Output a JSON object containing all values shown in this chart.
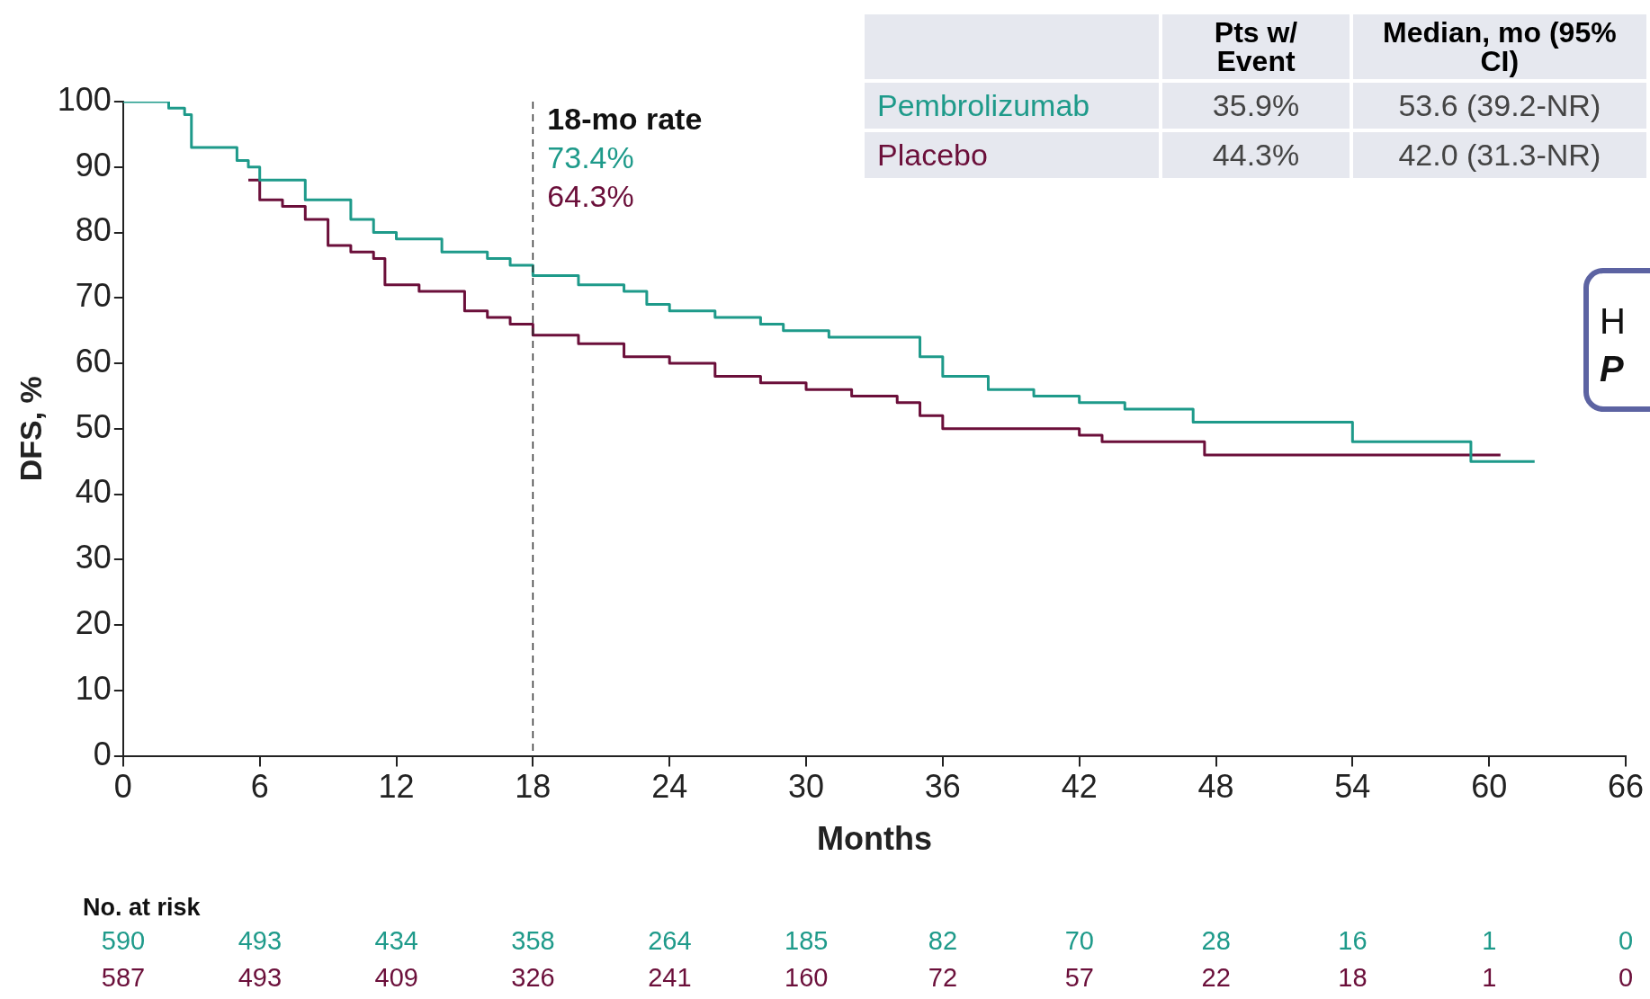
{
  "chart_data": {
    "type": "step",
    "xlabel": "Months",
    "ylabel": "DFS, %",
    "x": [
      0,
      2,
      2.7,
      3,
      5,
      5.5,
      6,
      8,
      10,
      11,
      12,
      14,
      16,
      17,
      18,
      20,
      22,
      23,
      24,
      26,
      28,
      29,
      31,
      34,
      35,
      36,
      38,
      40,
      42,
      44,
      47,
      53.5,
      54,
      59,
      59.2,
      62
    ],
    "series": [
      {
        "name": "Pembrolizumab",
        "color": "#1e9a8a",
        "values": [
          100,
          99,
          98,
          93,
          91,
          90,
          88,
          85,
          82,
          80,
          79,
          77,
          76,
          75,
          73.4,
          72,
          71,
          69,
          68,
          67,
          66,
          65,
          64,
          64,
          61,
          58,
          56,
          55,
          54,
          53,
          51,
          51,
          48,
          48,
          45,
          45
        ]
      },
      {
        "name": "Placebo",
        "color": "#6b0f3a",
        "x": [
          5.5,
          6,
          7,
          8,
          9,
          10,
          11,
          11.5,
          13,
          15,
          16,
          17,
          18,
          20,
          22,
          24,
          26,
          28,
          30,
          32,
          34,
          35,
          36,
          40,
          42,
          43,
          47,
          47.5,
          60.5
        ],
        "values": [
          88,
          85,
          84,
          82,
          78,
          77,
          76,
          72,
          71,
          68,
          67,
          66,
          64.3,
          63,
          61,
          60,
          58,
          57,
          56,
          55,
          54,
          52,
          50,
          50,
          49,
          48,
          48,
          46,
          46
        ]
      }
    ],
    "xlim": [
      0,
      66
    ],
    "xticks": [
      0,
      6,
      12,
      18,
      24,
      30,
      36,
      42,
      48,
      54,
      60,
      66
    ],
    "ylim": [
      0,
      100
    ],
    "yticks": [
      0,
      10,
      20,
      30,
      40,
      50,
      60,
      70,
      80,
      90,
      100
    ],
    "grid": false,
    "legend": "top right",
    "marker": "none",
    "line_style": "solid",
    "ref_lines": [
      {
        "axis": "x",
        "value": 18,
        "label": "18-mo rate",
        "color": "#333333",
        "line_style": "dashed"
      }
    ],
    "annotations": [
      "73.4%",
      "64.3%",
      "Pts w/ Event",
      "Median, mo (95% CI)",
      "35.9%",
      "53.6 (39.2-NR)",
      "44.3%",
      "42.0 (31.3-NR)",
      "No. at risk",
      "590",
      "493",
      "434",
      "358",
      "264",
      "185",
      "82",
      "70",
      "28",
      "16",
      "1",
      "0",
      "587",
      "493",
      "409",
      "326",
      "241",
      "160",
      "72",
      "57",
      "22",
      "18",
      "1",
      "0",
      "H",
      "P"
    ]
  }
}
